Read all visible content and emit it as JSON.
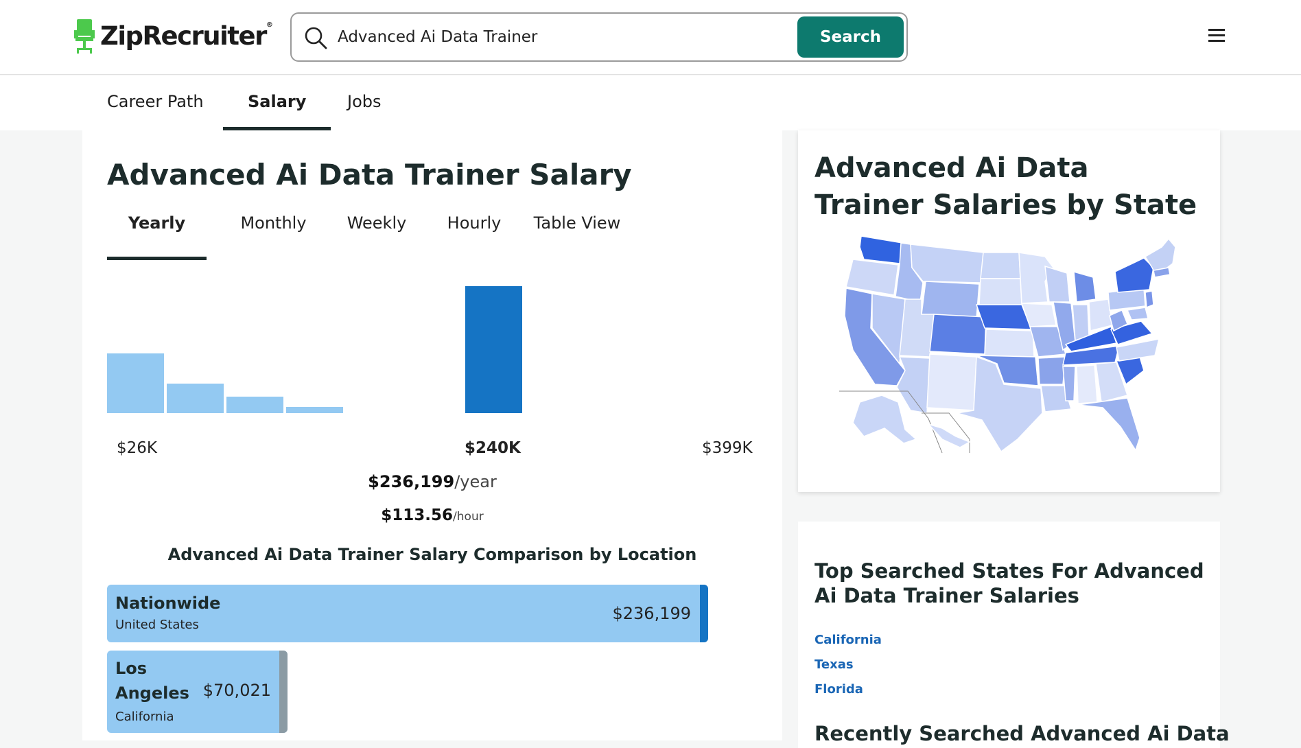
{
  "header": {
    "logo_text": "ZipRecruiter",
    "logo_mark": "®",
    "search_value": "Advanced Ai Data Trainer",
    "search_button": "Search"
  },
  "page_tabs": [
    "Career Path",
    "Salary",
    "Jobs"
  ],
  "salary": {
    "title": "Advanced Ai Data Trainer Salary",
    "period_tabs": [
      "Yearly",
      "Monthly",
      "Weekly",
      "Hourly",
      "Table View"
    ],
    "histogram": {
      "relative_heights": [
        0.47,
        0.23,
        0.13,
        0.05,
        0,
        0,
        1.0
      ],
      "highlight_index": 6,
      "x_labels": {
        "min": "$26K",
        "mid": "$240K",
        "max": "$399K"
      }
    },
    "avg_year_value": "$236,199",
    "avg_year_unit": "/year",
    "avg_hour_value": "$113.56",
    "avg_hour_unit": "/hour",
    "comparison_title": "Advanced Ai Data Trainer Salary Comparison by Location",
    "locations": [
      {
        "name": "Nationwide",
        "sub": "United States",
        "value": "$236,199"
      },
      {
        "name_line1": "Los",
        "name_line2": "Angeles",
        "sub": "California",
        "value": "$70,021"
      }
    ]
  },
  "map_card": {
    "title": "Advanced Ai Data Trainer Salaries by State"
  },
  "top_states": {
    "title": "Top Searched States For Advanced Ai Data Trainer Salaries",
    "states": [
      "California",
      "Texas",
      "Florida"
    ]
  },
  "recent": {
    "title": "Recently Searched Advanced Ai Data"
  },
  "colors": {
    "brand_green": "#0d7a6e",
    "bar_light": "#93c9f2",
    "bar_dark": "#1574c4",
    "link": "#1a66b5"
  }
}
